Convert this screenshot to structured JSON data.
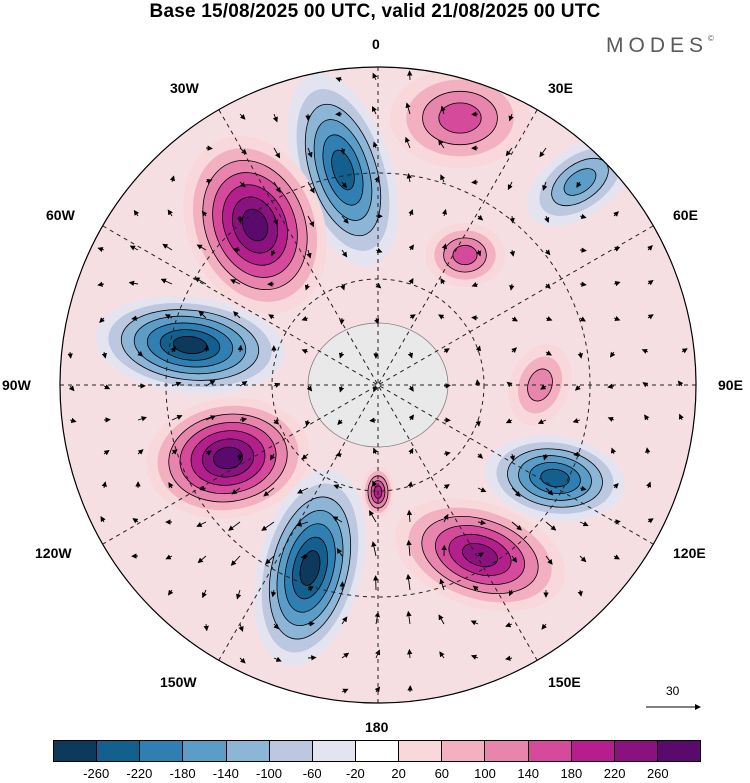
{
  "title": "Base 15/08/2025 00 UTC, valid 21/08/2025 00 UTC",
  "brand": "MODES",
  "brand_mark": "©",
  "longitude_labels": {
    "north": "0",
    "n30e": "30E",
    "n60e": "60E",
    "east": "90E",
    "s120e": "120E",
    "s150e": "150E",
    "south": "180",
    "s150w": "150W",
    "s120w": "120W",
    "west": "90W",
    "n60w": "60W",
    "n30w": "30W"
  },
  "vector_reference": "30",
  "colorbar": {
    "colors": [
      "#0d3a5c",
      "#135f8e",
      "#2f7fb3",
      "#5c9dc8",
      "#8cb5d6",
      "#bcc8e0",
      "#e4e4f0",
      "#ffffff",
      "#f9d8dc",
      "#f2b0c1",
      "#e885ad",
      "#d54a9b",
      "#b51e8d",
      "#8a127f",
      "#5a0a6d"
    ],
    "ticks": [
      "-260",
      "-220",
      "-180",
      "-140",
      "-100",
      "-60",
      "-20",
      "20",
      "60",
      "100",
      "140",
      "180",
      "220",
      "260"
    ]
  },
  "anomaly_features": [
    {
      "name": "low-north-a",
      "sign": "negative",
      "level": -220
    },
    {
      "name": "high-north-east",
      "sign": "positive",
      "level": 140
    },
    {
      "name": "low-north-east",
      "sign": "negative",
      "level": -140
    },
    {
      "name": "high-north-west",
      "sign": "positive",
      "level": 260
    },
    {
      "name": "low-west",
      "sign": "negative",
      "level": -260
    },
    {
      "name": "high-south-west",
      "sign": "positive",
      "level": 260
    },
    {
      "name": "low-south",
      "sign": "negative",
      "level": -260
    },
    {
      "name": "high-south-east",
      "sign": "positive",
      "level": 220
    },
    {
      "name": "low-east",
      "sign": "negative",
      "level": -220
    },
    {
      "name": "high-east",
      "sign": "positive",
      "level": 100
    },
    {
      "name": "high-center-east",
      "sign": "positive",
      "level": 140
    },
    {
      "name": "high-center-south",
      "sign": "positive",
      "level": 180
    }
  ]
}
